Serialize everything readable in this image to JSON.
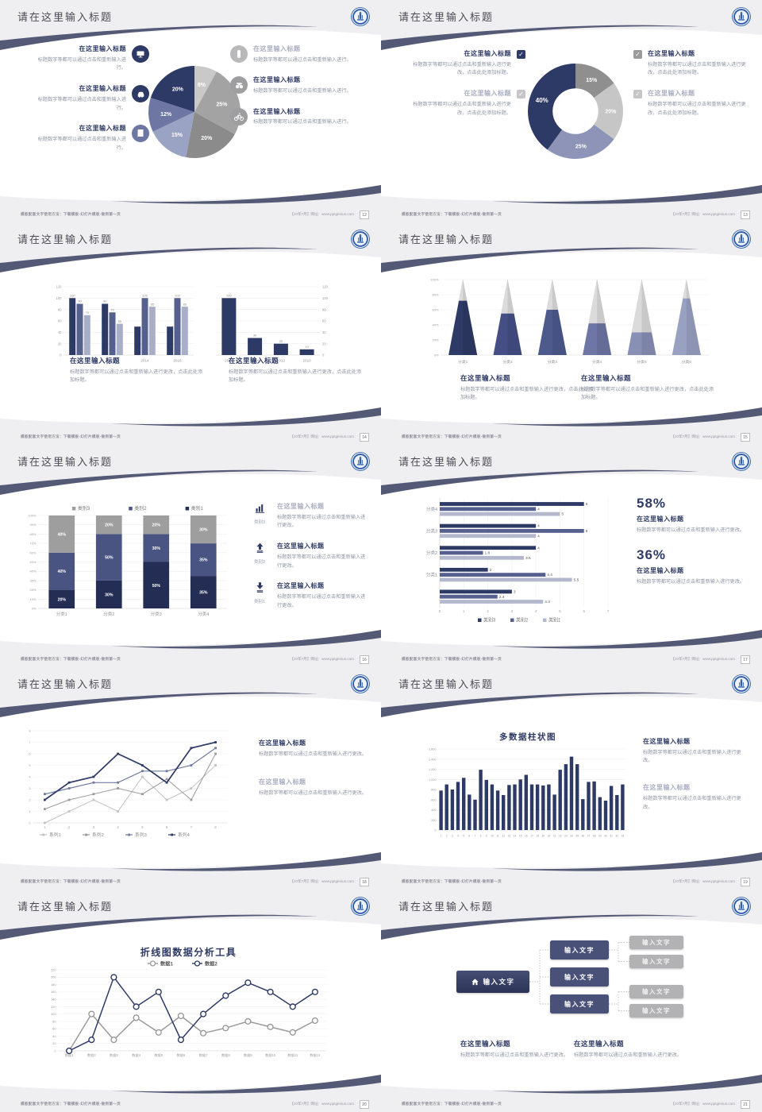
{
  "common": {
    "slide_title": "请在这里输入标题",
    "footer_left": "模板配套文字使用方法：下载模板-幻灯片模板-做到第一页",
    "footer_right": "【20年7月】网址：www.pptgenius.com"
  },
  "theme": {
    "primary": "#2e3a66",
    "accent": "#545a76",
    "slate": "#6e77a3",
    "light_slate": "#9ba3c4",
    "gray": "#9e9e9e"
  },
  "slides": [
    {
      "page": "12",
      "items": [
        {
          "title": "在这里输入标题",
          "body": "标题数字等都可以通过点击和重新输入进行。",
          "icon": "monitor",
          "icon_bg": "#2e3a66"
        },
        {
          "title": "在这里输入标题",
          "body": "标题数字等都可以通过点击和重新输入进行。",
          "icon": "car",
          "icon_bg": "#2e3a66"
        },
        {
          "title": "在这里输入标题",
          "body": "标题数字等都可以通过点击和重新输入进行。",
          "icon": "book",
          "icon_bg": "#6e77a3"
        },
        {
          "title": "在这里输入标题",
          "body": "标题数字等都可以通过点击和重新输入进行。",
          "icon": "phone",
          "icon_bg": "#b9b9bc",
          "muted": true
        },
        {
          "title": "在这里输入标题",
          "body": "标题数字等都可以通过点击和重新输入进行。",
          "icon": "binoculars",
          "icon_bg": "#9e9ea1"
        },
        {
          "title": "在这里输入标题",
          "body": "标题数字等都可以通过点击和重新输入进行。",
          "icon": "bicycle",
          "icon_bg": "#9e9ea1"
        }
      ]
    },
    {
      "page": "13",
      "items": [
        {
          "title": "在这里输入标题",
          "body": "标题数字等都可以通过点击和重新输入进行更改，点击此处添加标题。",
          "check": "#2e3a66"
        },
        {
          "title": "在这里输入标题",
          "body": "标题数字等都可以通过点击和重新输入进行更改，点击此处添加标题。",
          "check": "#c6c6c9",
          "muted": true
        },
        {
          "title": "在这里输入标题",
          "body": "标题数字等都可以通过点击和重新输入进行更改，点击此处添加标题。",
          "check": "#9b9b9e"
        },
        {
          "title": "在这里输入标题",
          "body": "标题数字等都可以通过点击和重新输入进行更改，点击此处添加标题。",
          "check": "#c6c6c9",
          "muted": true
        }
      ]
    },
    {
      "page": "14",
      "blocks": [
        {
          "title": "在这里输入标题",
          "body": "标题数字等都可以通过点击和重新输入进行更改，点击此处添加标题。"
        },
        {
          "title": "在这里输入标题",
          "body": "标题数字等都可以通过点击和重新输入进行更改，点击此处添加标题。"
        }
      ]
    },
    {
      "page": "15",
      "blocks": [
        {
          "title": "在这里输入标题",
          "body": "标题数字等都可以通过点击和重新输入进行更改，点击此处添加标题。"
        },
        {
          "title": "在这里输入标题",
          "body": "标题数字等都可以通过点击和重新输入进行更改，点击此处添加标题。"
        }
      ]
    },
    {
      "page": "16",
      "items": [
        {
          "label": "类别3",
          "title": "在这里输入标题",
          "body": "标题数字等都可以通过点击和重新输入进行更改。",
          "icon": "bar-chart",
          "muted": true
        },
        {
          "label": "类别2",
          "title": "在这里输入标题",
          "body": "标题数字等都可以通过点击和重新输入进行更改。",
          "icon": "arrow-up"
        },
        {
          "label": "类别1",
          "title": "在这里输入标题",
          "body": "标题数字等都可以通过点击和重新输入进行更改。",
          "icon": "arrow-down"
        }
      ]
    },
    {
      "page": "17",
      "stats": [
        {
          "value": "58%",
          "title": "在这里输入标题",
          "body": "标题数字等都可以通过点击和重新输入进行更改。"
        },
        {
          "value": "36%",
          "title": "在这里输入标题",
          "body": "标题数字等都可以通过点击和重新输入进行更改。"
        }
      ]
    },
    {
      "page": "18",
      "blocks": [
        {
          "title": "在这里输入标题",
          "body": "标题数字等都可以通过点击和重新输入进行更改。"
        },
        {
          "title": "在这里输入标题",
          "body": "标题数字等都可以通过点击和重新输入进行更改。",
          "muted": true
        }
      ]
    },
    {
      "page": "19",
      "blocks": [
        {
          "title": "在这里输入标题",
          "body": "标题数字等都可以通过点击和重新输入进行更改。"
        },
        {
          "title": "在这里输入标题",
          "body": "标题数字等都可以通过点击和重新输入进行更改。",
          "muted": true
        }
      ]
    },
    {
      "page": "20"
    },
    {
      "page": "21",
      "tree": {
        "root": "输入文字",
        "children": [
          "输入文字",
          "输入文字",
          "输入文字"
        ],
        "leaves": [
          "输入文字",
          "输入文字",
          "输入文字",
          "输入文字"
        ]
      },
      "blocks": [
        {
          "title": "在这里输入标题",
          "body": "标题数字等都可以通过点击和重新输入进行更改。"
        },
        {
          "title": "在这里输入标题",
          "body": "标题数字等都可以通过点击和重新输入进行更改。"
        }
      ]
    }
  ],
  "chart_data": [
    {
      "type": "pie",
      "values": [
        8,
        25,
        20,
        15,
        12,
        20
      ],
      "labels": [
        "8%",
        "25%",
        "20%",
        "15%",
        "12%",
        "20%"
      ],
      "colors": [
        "#c9c9c9",
        "#a3a3a3",
        "#8b8b8b",
        "#9ba3c4",
        "#6e77a3",
        "#2e3a66"
      ],
      "start": "top",
      "direction": "clockwise"
    },
    {
      "type": "donut",
      "values": [
        15,
        20,
        25,
        40
      ],
      "labels": [
        "15%",
        "20%",
        "25%",
        "40%"
      ],
      "colors": [
        "#8f8f8f",
        "#c6c6c6",
        "#8d94b8",
        "#2e3a66"
      ],
      "inner_ratio": 0.48
    },
    {
      "type": "bar",
      "categories": [
        "2010",
        "2012",
        "2014",
        "2016"
      ],
      "ylim": [
        0,
        120
      ],
      "ystep": 20,
      "series": [
        {
          "name": "series1",
          "color": "#2e3a66",
          "values": [
            100,
            90,
            50,
            50
          ],
          "labels": [
            "100",
            "90",
            "",
            ""
          ]
        },
        {
          "name": "series2",
          "color": "#55608e",
          "values": [
            90,
            75,
            100,
            100
          ],
          "labels": [
            "90",
            "75",
            "100",
            "100"
          ]
        },
        {
          "name": "series3",
          "color": "#a9aec8",
          "values": [
            70,
            55,
            85,
            85
          ],
          "labels": [
            "70",
            "55",
            "85",
            "85"
          ]
        }
      ]
    },
    {
      "type": "bar",
      "axis": "right",
      "categories": [
        "2016",
        "2014",
        "2012",
        "2010"
      ],
      "color": "#2e3a66",
      "values": [
        100,
        30,
        20,
        10
      ],
      "labels": [
        "100",
        "30",
        "20",
        "10"
      ],
      "ylim": [
        0,
        120
      ],
      "ystep": 20,
      "barw": 18
    },
    {
      "type": "pyramid",
      "categories": [
        "分类1",
        "分类2",
        "分类3",
        "分类4",
        "分类5",
        "分类6"
      ],
      "fill_percent": [
        72,
        55,
        60,
        42,
        30,
        75
      ],
      "colors": [
        "#2e3a66",
        "#454f85",
        "#4d5a8c",
        "#6d76a4",
        "#8890b6",
        "#99a1c2"
      ],
      "top_color": "#dbdbdc",
      "ylim": [
        0,
        100
      ],
      "ystep": 20
    },
    {
      "type": "stacked_bar_100",
      "categories": [
        "分类1",
        "分类2",
        "分类3",
        "分类4"
      ],
      "ylim": [
        0,
        100
      ],
      "ystep": 10,
      "legend": [
        {
          "label": "类别3",
          "color": "#9e9e9e"
        },
        {
          "label": "类别2",
          "color": "#4a5482"
        },
        {
          "label": "类别1",
          "color": "#242e54"
        }
      ],
      "series": [
        {
          "name": "类别1",
          "color": "#242e54",
          "values": [
            20,
            30,
            50,
            35
          ]
        },
        {
          "name": "类别2",
          "color": "#4a5482",
          "values": [
            40,
            50,
            30,
            35
          ]
        },
        {
          "name": "类别3",
          "color": "#9e9e9e",
          "values": [
            40,
            20,
            20,
            30
          ]
        }
      ]
    },
    {
      "type": "hbar",
      "groups": [
        "分类4",
        "分类3",
        "分类2",
        "分类1",
        ""
      ],
      "xlim": [
        0,
        7
      ],
      "series": [
        {
          "name": "类别3",
          "color": "#2e3a66",
          "values": [
            6,
            4,
            4,
            2,
            3
          ],
          "labels": [
            "6",
            "4",
            "4",
            "2",
            "3"
          ]
        },
        {
          "name": "类别2",
          "color": "#55608e",
          "values": [
            4,
            6,
            1.8,
            4.4,
            2.4
          ],
          "labels": [
            "4",
            "6",
            "1.8",
            "4.4",
            "2.4"
          ]
        },
        {
          "name": "类别1",
          "color": "#b3b8cd",
          "values": [
            5,
            4,
            3.5,
            5.5,
            4.3
          ],
          "labels": [
            "5",
            "4",
            "3.5",
            "5.5",
            "4.3"
          ]
        }
      ],
      "legend": [
        {
          "label": "类别3",
          "color": "#2e3a66"
        },
        {
          "label": "类别2",
          "color": "#55608e"
        },
        {
          "label": "类别1",
          "color": "#b3b8cd"
        }
      ]
    },
    {
      "type": "line",
      "x": [
        "1",
        "2",
        "3",
        "4",
        "5",
        "6",
        "7",
        "8"
      ],
      "ylim": [
        0,
        8
      ],
      "ystep": 1,
      "legend_pos": "bottom",
      "series": [
        {
          "name": "系列1",
          "color": "#c2c2c2",
          "values": [
            0,
            1,
            2,
            1,
            4,
            2,
            3,
            5
          ],
          "width": 1
        },
        {
          "name": "系列2",
          "color": "#9a9a9a",
          "values": [
            1.2,
            2,
            2.5,
            3,
            2.5,
            3.8,
            2,
            6
          ],
          "width": 1
        },
        {
          "name": "系列3",
          "color": "#707a9e",
          "values": [
            2.5,
            3,
            3.5,
            3.5,
            4.5,
            4.5,
            5,
            6.5
          ],
          "width": 1.2
        },
        {
          "name": "系列4",
          "color": "#2e3a66",
          "values": [
            2,
            3.5,
            4,
            6,
            5,
            3.5,
            6.5,
            7
          ],
          "width": 1.7
        }
      ]
    },
    {
      "type": "bar",
      "title": "多数据柱状图",
      "comma": true,
      "ylim": [
        0,
        1600
      ],
      "ystep": 200,
      "color": "#2e3a66",
      "categories": [
        "1",
        "2",
        "3",
        "4",
        "5",
        "6",
        "7",
        "8",
        "9",
        "10",
        "11",
        "12",
        "13",
        "14",
        "15",
        "16",
        "17",
        "18",
        "19",
        "20",
        "21",
        "22",
        "23",
        "24",
        "25",
        "26",
        "27",
        "28",
        "29",
        "30",
        "31",
        "32",
        "33"
      ],
      "values": [
        780,
        900,
        800,
        950,
        1030,
        700,
        600,
        1190,
        990,
        900,
        780,
        690,
        890,
        900,
        1000,
        1090,
        900,
        900,
        880,
        900,
        700,
        1190,
        1300,
        1450,
        1300,
        610,
        950,
        960,
        650,
        580,
        870,
        690,
        900
      ],
      "catfs": 3.2,
      "yfs": 3.8
    },
    {
      "type": "line",
      "title": "折线图数据分析工具",
      "legend_pos": "top",
      "marker": "circle",
      "ylim": [
        0,
        220
      ],
      "ystep": 20,
      "x": [
        "数据1",
        "数据2",
        "数据3",
        "数据4",
        "数据5",
        "数据6",
        "数据7",
        "数据8",
        "数据9",
        "数据10",
        "数据11",
        "数据12"
      ],
      "series": [
        {
          "name": "数据1",
          "color": "#9a9a9a",
          "values": [
            0,
            100,
            30,
            90,
            50,
            95,
            48,
            62,
            80,
            65,
            50,
            82
          ],
          "width": 1.5
        },
        {
          "name": "数据2",
          "color": "#2e3a66",
          "values": [
            0,
            30,
            200,
            120,
            160,
            30,
            100,
            150,
            185,
            160,
            120,
            160
          ],
          "width": 1.5
        }
      ]
    }
  ]
}
